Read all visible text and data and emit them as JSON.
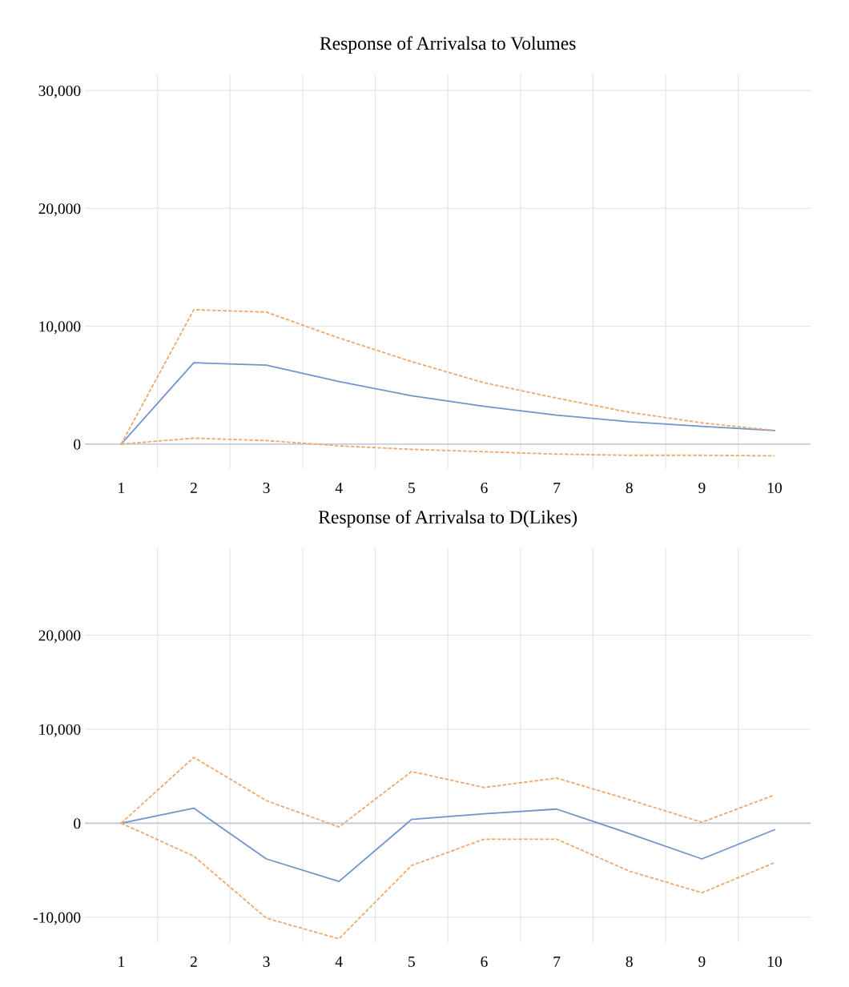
{
  "chart_data": [
    {
      "type": "line",
      "title": "Response of Arrivalsa to Volumes",
      "categories": [
        "1",
        "2",
        "3",
        "4",
        "5",
        "6",
        "7",
        "8",
        "9",
        "10"
      ],
      "series": [
        {
          "color": "#7094cc",
          "line_style": "solid",
          "values": [
            0,
            6900,
            6700,
            5300,
            4100,
            3200,
            2450,
            1900,
            1500,
            1150
          ]
        },
        {
          "color": "#f0a870",
          "line_style": "dashed",
          "values": [
            0,
            11400,
            11200,
            9000,
            7000,
            5200,
            3900,
            2700,
            1800,
            1150
          ]
        },
        {
          "color": "#f0a870",
          "line_style": "dashed",
          "values": [
            0,
            500,
            300,
            -150,
            -450,
            -650,
            -850,
            -950,
            -950,
            -1000
          ]
        }
      ],
      "ylim": [
        -2100,
        31400
      ],
      "yticks": [
        {
          "value": 0,
          "label": "0"
        },
        {
          "value": 10000,
          "label": "10,000"
        },
        {
          "value": 20000,
          "label": "20,000"
        },
        {
          "value": 30000,
          "label": "30,000"
        }
      ],
      "grid": true
    },
    {
      "type": "line",
      "title": "Response of Arrivalsa to D(Likes)",
      "categories": [
        "1",
        "2",
        "3",
        "4",
        "5",
        "6",
        "7",
        "8",
        "9",
        "10"
      ],
      "series": [
        {
          "color": "#7094cc",
          "line_style": "solid",
          "values": [
            0,
            1600,
            -3800,
            -6200,
            400,
            1000,
            1500,
            -1100,
            -3800,
            -700
          ]
        },
        {
          "color": "#f0a870",
          "line_style": "dashed",
          "values": [
            0,
            7000,
            2400,
            -400,
            5500,
            3800,
            4800,
            2500,
            100,
            3000
          ]
        },
        {
          "color": "#f0a870",
          "line_style": "dashed",
          "values": [
            0,
            -3500,
            -10100,
            -12300,
            -4500,
            -1700,
            -1700,
            -5100,
            -7400,
            -4200
          ]
        }
      ],
      "ylim": [
        -12700,
        29300
      ],
      "yticks": [
        {
          "value": -10000,
          "label": "-10,000"
        },
        {
          "value": 0,
          "label": "0"
        },
        {
          "value": 10000,
          "label": "10,000"
        },
        {
          "value": 20000,
          "label": "20,000"
        }
      ],
      "grid": true
    }
  ]
}
